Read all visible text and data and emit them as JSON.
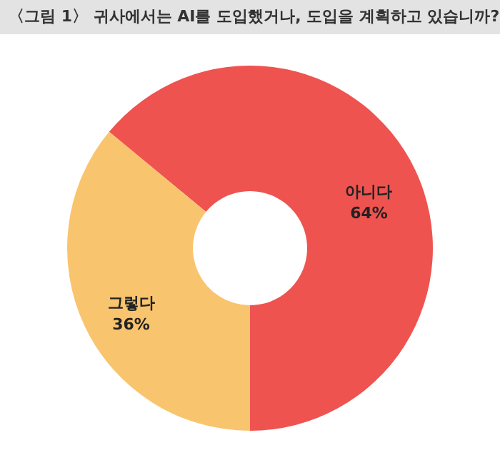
{
  "chart_data": {
    "type": "donut",
    "title": "〈그림 1〉 귀사에서는 AI를 도입했거나, 도입을 계획하고 있습니까?",
    "categories": [
      "아니다",
      "그렇다"
    ],
    "values": [
      64,
      36
    ],
    "value_labels": [
      "64%",
      "36%"
    ],
    "colors": [
      "#ef5350",
      "#f9c46e"
    ]
  }
}
